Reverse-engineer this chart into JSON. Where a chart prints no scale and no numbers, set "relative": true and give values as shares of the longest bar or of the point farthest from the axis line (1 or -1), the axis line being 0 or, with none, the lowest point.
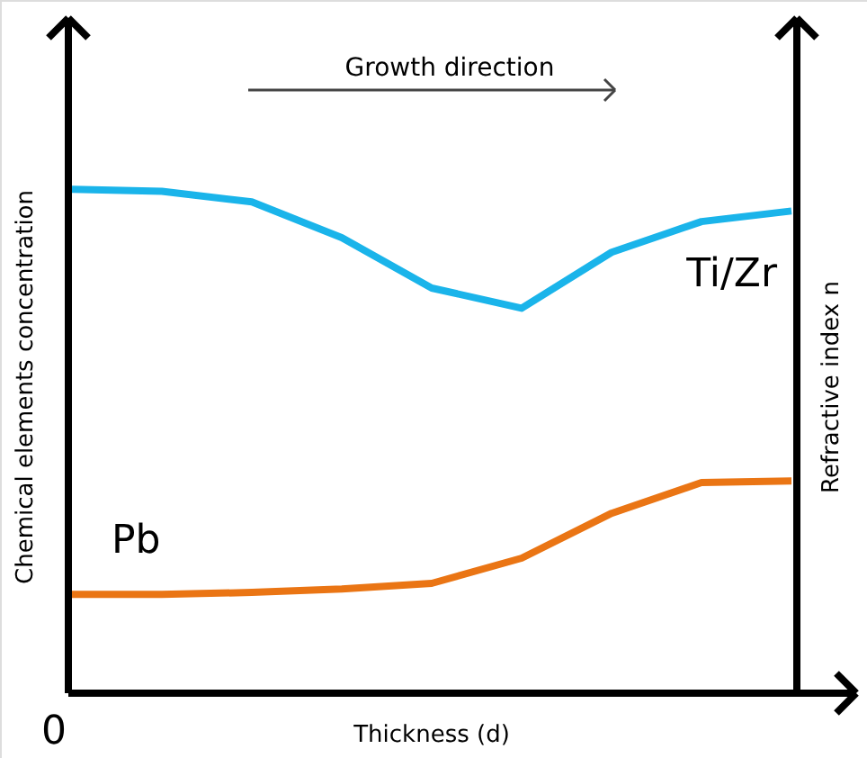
{
  "chart_data": {
    "type": "line",
    "relative": true,
    "legend": false,
    "xlabel": "Thickness (d)",
    "ylabel": "Chemical elements concentration",
    "y2label": "Refractive index n",
    "annotations": [
      "Growth direction",
      "0"
    ],
    "categories": [
      null,
      null,
      null,
      null,
      null,
      null,
      null,
      null,
      null
    ],
    "series": [
      {
        "name": "Ti/Zr",
        "color": "#1ab4ea",
        "values": [
          1,
          0.996,
          0.975,
          0.904,
          0.804,
          0.764,
          0.875,
          0.936,
          0.957
        ]
      },
      {
        "name": "Pb",
        "color": "#ea7514",
        "values": [
          0.196,
          0.196,
          0.2,
          0.207,
          0.218,
          0.268,
          0.357,
          0.418,
          0.421
        ]
      }
    ]
  }
}
